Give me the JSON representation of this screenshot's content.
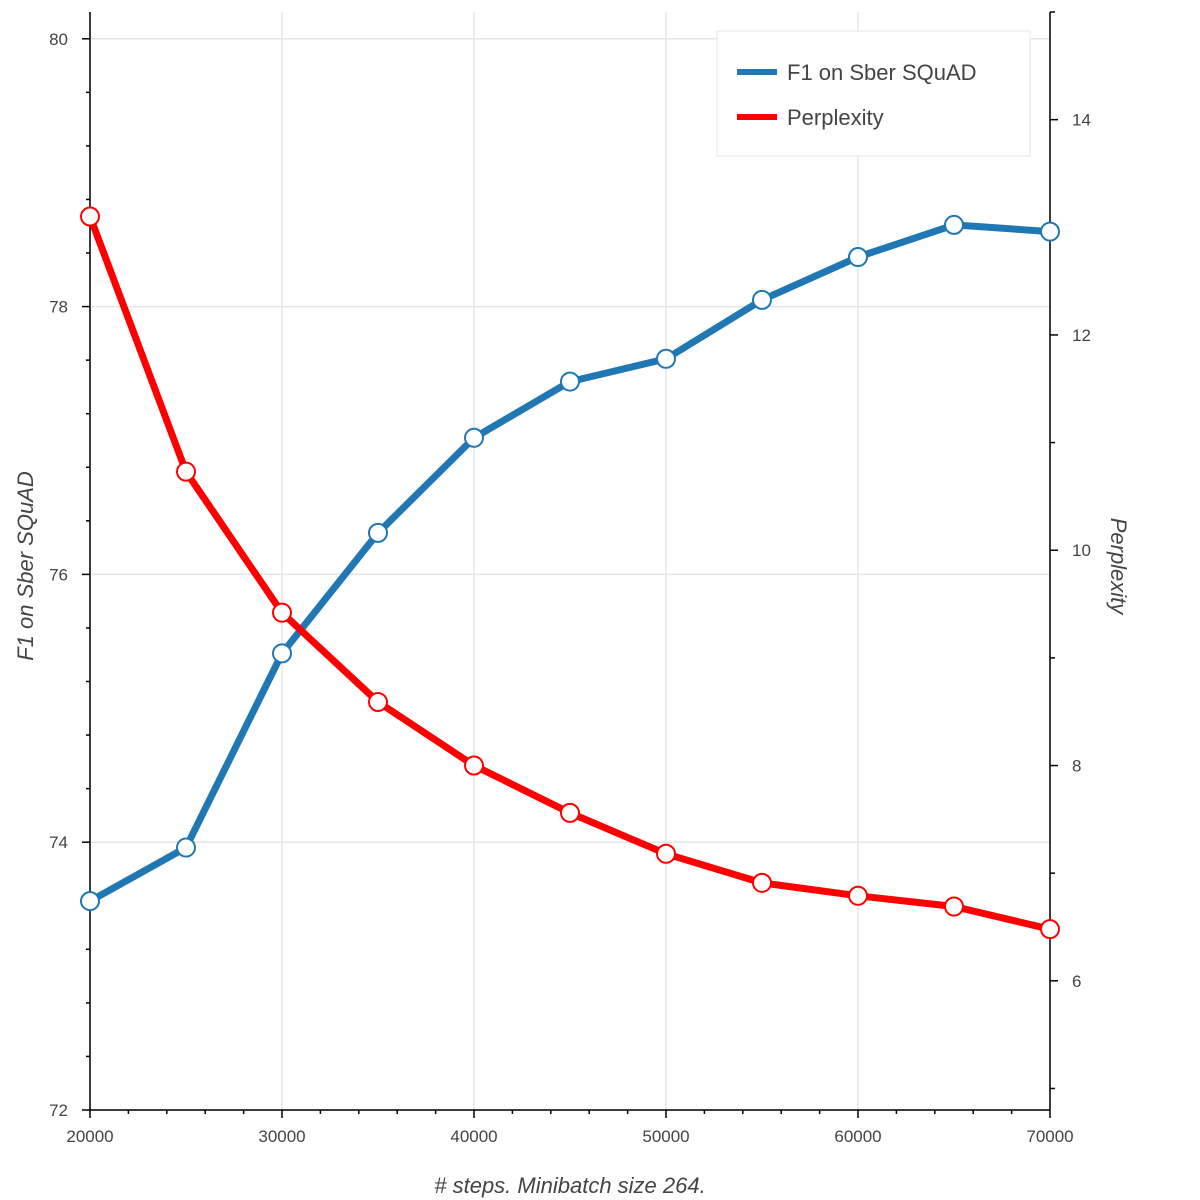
{
  "chart_data": {
    "type": "line",
    "xlabel": "# steps. Minibatch size 264.",
    "ylabel_left": "F1 on Sber SQuAD",
    "ylabel_right": "Perplexity",
    "xlim": [
      20000,
      70000
    ],
    "ylim_left": [
      72,
      80.2
    ],
    "ylim_right": [
      4.8,
      15
    ],
    "x_ticks": [
      20000,
      30000,
      40000,
      50000,
      60000,
      70000
    ],
    "y_left_ticks": [
      72,
      74,
      76,
      78,
      80
    ],
    "y_right_ticks": [
      6,
      8,
      10,
      12,
      14
    ],
    "grid": true,
    "legend_position": "top-right",
    "x": [
      20000,
      25000,
      30000,
      35000,
      40000,
      45000,
      50000,
      55000,
      60000,
      65000,
      70000
    ],
    "series": [
      {
        "name": "F1 on Sber SQuAD",
        "axis": "left",
        "color": "#1f77b4",
        "values": [
          73.56,
          73.96,
          75.41,
          76.31,
          77.02,
          77.44,
          77.61,
          78.05,
          78.37,
          78.61,
          78.56
        ]
      },
      {
        "name": "Perplexity",
        "axis": "right",
        "color": "#ff0000",
        "values": [
          13.1,
          10.73,
          9.42,
          8.59,
          8.0,
          7.56,
          7.18,
          6.91,
          6.79,
          6.69,
          6.48
        ]
      }
    ]
  }
}
